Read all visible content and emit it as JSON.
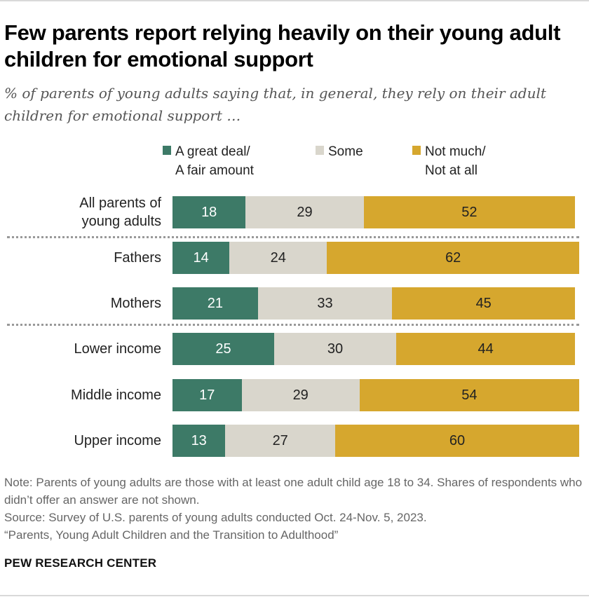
{
  "title": "Few parents report relying heavily on their young adult children for emotional support",
  "subtitle": "% of parents of young adults saying that, in general, they rely on their adult children for emotional support …",
  "legend": [
    {
      "label": "A great deal/\nA fair amount",
      "color": "#3d7a67"
    },
    {
      "label": "Some",
      "color": "#d9d6cc"
    },
    {
      "label": "Not much/\nNot at all",
      "color": "#d6a72e"
    }
  ],
  "chart_data": {
    "type": "bar",
    "orientation": "horizontal",
    "stacked": true,
    "unit": "%",
    "categories": [
      "All parents of\nyoung adults",
      "Fathers",
      "Mothers",
      "Lower income",
      "Middle income",
      "Upper income"
    ],
    "series": [
      {
        "name": "A great deal/ A fair amount",
        "values": [
          18,
          14,
          21,
          25,
          17,
          13
        ]
      },
      {
        "name": "Some",
        "values": [
          29,
          24,
          33,
          30,
          29,
          27
        ]
      },
      {
        "name": "Not much/ Not at all",
        "values": [
          52,
          62,
          45,
          44,
          54,
          60
        ]
      }
    ],
    "group_dividers_after": [
      0,
      2
    ],
    "legend_position": "top"
  },
  "notes": {
    "note": "Note: Parents of young adults are those with at least one adult child age 18 to 34. Shares of respondents who didn’t offer an answer are not shown.",
    "source": "Source: Survey of U.S. parents of young adults conducted Oct. 24-Nov. 5, 2023.",
    "report": "“Parents, Young Adult Children and the Transition to Adulthood”"
  },
  "brand": "PEW RESEARCH CENTER"
}
